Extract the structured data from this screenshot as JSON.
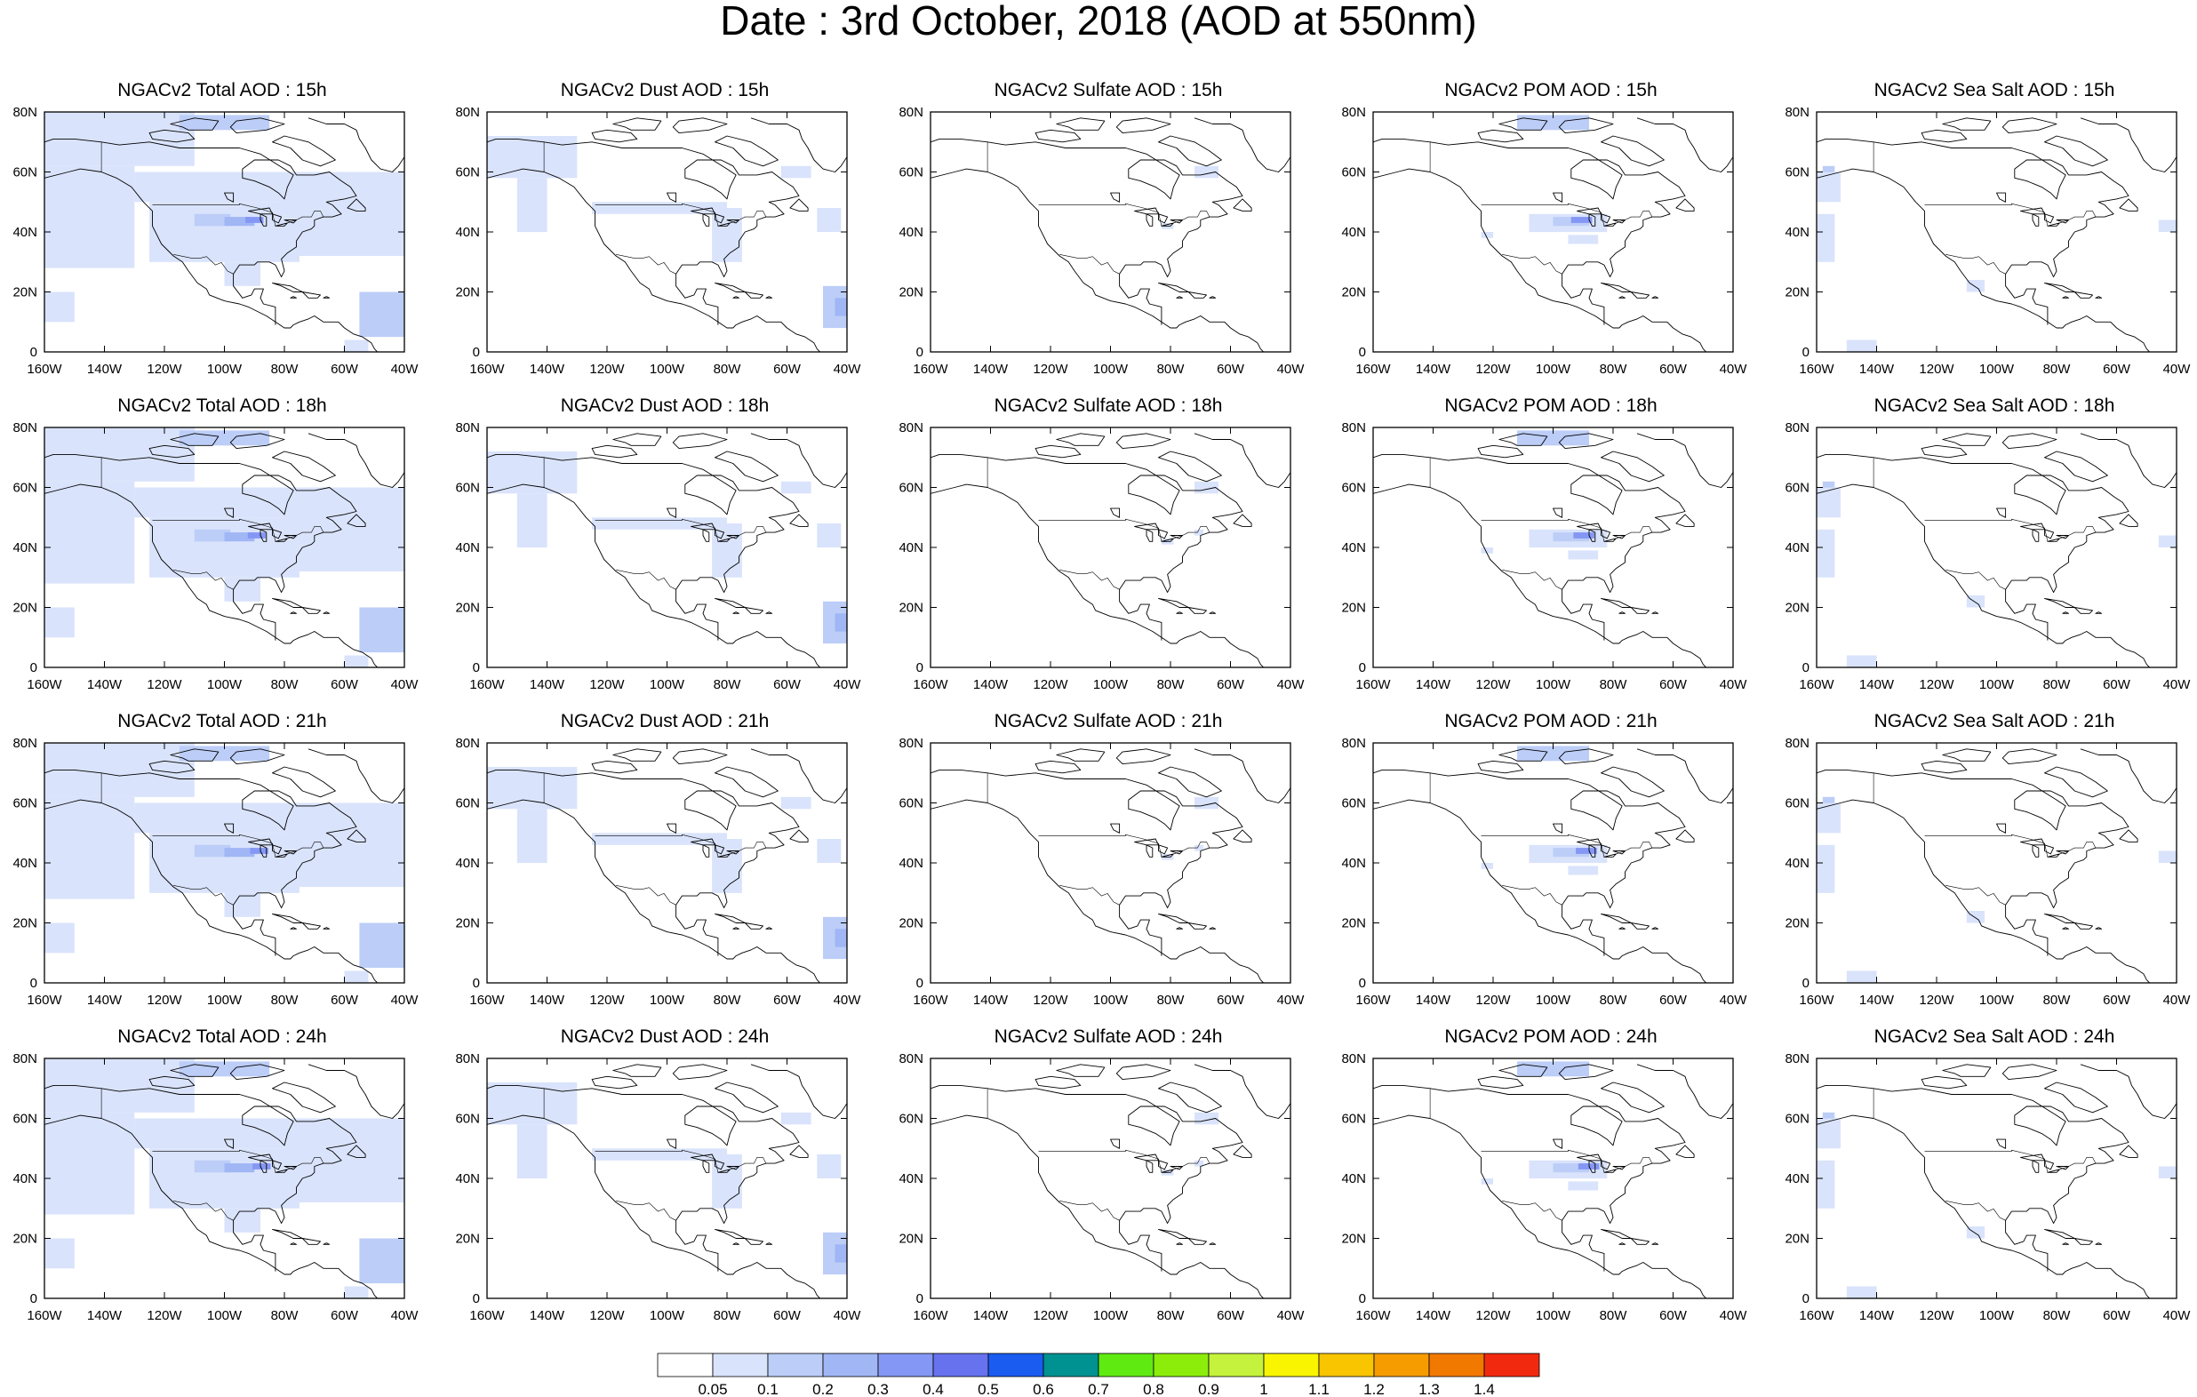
{
  "page": {
    "title": "Date : 3rd October, 2018 (AOD at 550nm)"
  },
  "axes": {
    "x_ticks": [
      "160W",
      "140W",
      "120W",
      "100W",
      "80W",
      "60W",
      "40W"
    ],
    "x_values": [
      -160,
      -140,
      -120,
      -100,
      -80,
      -60,
      -40
    ],
    "y_ticks": [
      "0",
      "20N",
      "40N",
      "60N",
      "80N"
    ],
    "y_values": [
      0,
      20,
      40,
      60,
      80
    ],
    "lon_range": [
      -160,
      -40
    ],
    "lat_range": [
      0,
      80
    ]
  },
  "colors": {
    "land_outline": "#000000",
    "background": "#ffffff",
    "aod_0_05": "#d9e3fb",
    "aod_0_1": "#bccdf7",
    "aod_0_2": "#a0b6f5",
    "aod_0_3": "#8597f4"
  },
  "colorbar": {
    "colors": [
      "#ffffff",
      "#d9e3fb",
      "#bccdf7",
      "#a0b6f5",
      "#8597f4",
      "#6672ee",
      "#1a5cf0",
      "#009191",
      "#5fea12",
      "#8ced0b",
      "#c5f23c",
      "#f9f500",
      "#f9c400",
      "#f69c00",
      "#f27900",
      "#f12a0f"
    ],
    "labels": [
      "0.05",
      "0.1",
      "0.2",
      "0.3",
      "0.4",
      "0.5",
      "0.6",
      "0.7",
      "0.8",
      "0.9",
      "1",
      "1.1",
      "1.2",
      "1.3",
      "1.4"
    ]
  },
  "panels": [
    {
      "title": "NGACv2 Total AOD : 15h",
      "variable": "total",
      "hour": 15
    },
    {
      "title": "NGACv2 Dust AOD : 15h",
      "variable": "dust",
      "hour": 15
    },
    {
      "title": "NGACv2 Sulfate AOD : 15h",
      "variable": "sulfate",
      "hour": 15
    },
    {
      "title": "NGACv2 POM AOD : 15h",
      "variable": "pom",
      "hour": 15
    },
    {
      "title": "NGACv2 Sea Salt AOD : 15h",
      "variable": "seasalt",
      "hour": 15
    },
    {
      "title": "NGACv2 Total AOD : 18h",
      "variable": "total",
      "hour": 18
    },
    {
      "title": "NGACv2 Dust AOD : 18h",
      "variable": "dust",
      "hour": 18
    },
    {
      "title": "NGACv2 Sulfate AOD : 18h",
      "variable": "sulfate",
      "hour": 18
    },
    {
      "title": "NGACv2 POM AOD : 18h",
      "variable": "pom",
      "hour": 18
    },
    {
      "title": "NGACv2 Sea Salt AOD : 18h",
      "variable": "seasalt",
      "hour": 18
    },
    {
      "title": "NGACv2 Total AOD : 21h",
      "variable": "total",
      "hour": 21
    },
    {
      "title": "NGACv2 Dust AOD : 21h",
      "variable": "dust",
      "hour": 21
    },
    {
      "title": "NGACv2 Sulfate AOD : 21h",
      "variable": "sulfate",
      "hour": 21
    },
    {
      "title": "NGACv2 POM AOD : 21h",
      "variable": "pom",
      "hour": 21
    },
    {
      "title": "NGACv2 Sea Salt AOD : 21h",
      "variable": "seasalt",
      "hour": 21
    },
    {
      "title": "NGACv2 Total AOD : 24h",
      "variable": "total",
      "hour": 24
    },
    {
      "title": "NGACv2 Dust AOD : 24h",
      "variable": "dust",
      "hour": 24
    },
    {
      "title": "NGACv2 Sulfate AOD : 24h",
      "variable": "sulfate",
      "hour": 24
    },
    {
      "title": "NGACv2 POM AOD : 24h",
      "variable": "pom",
      "hour": 24
    },
    {
      "title": "NGACv2 Sea Salt  AOD : 24h",
      "variable": "seasalt",
      "hour": 24
    }
  ]
}
